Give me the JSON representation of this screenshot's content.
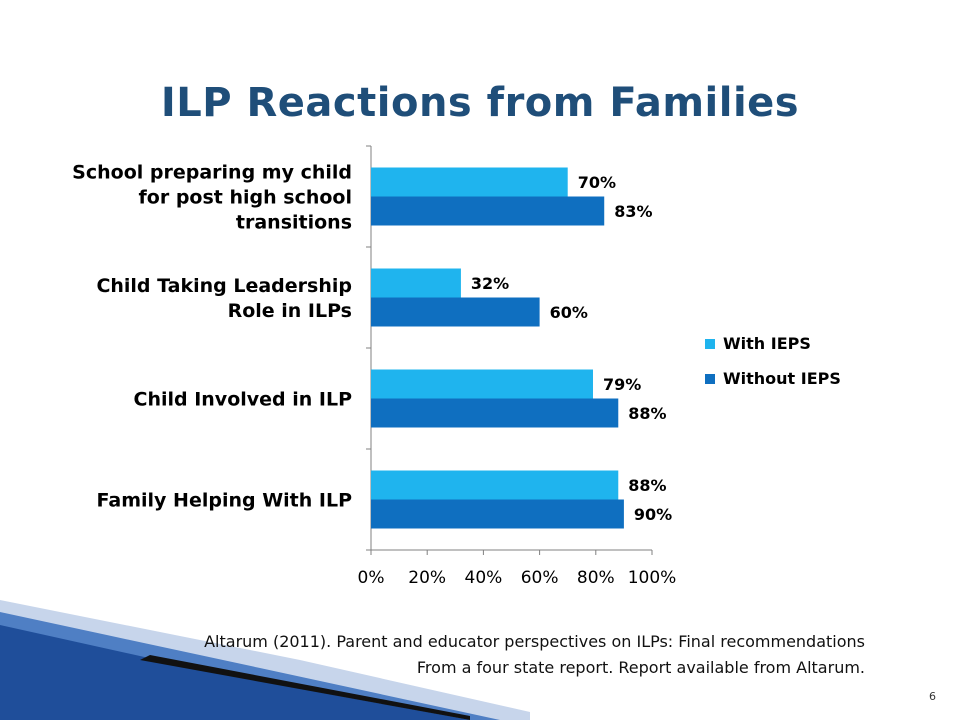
{
  "slide": {
    "title": "ILP Reactions from Families",
    "citation_line1": "Altarum (2011). Parent and educator perspectives on ILPs: Final recommendations",
    "citation_line2": "From a four state report. Report available from Altarum.",
    "page_number": "6"
  },
  "chart_data": {
    "type": "bar",
    "orientation": "horizontal",
    "title": "",
    "xlabel": "",
    "ylabel": "",
    "xlim": [
      0,
      100
    ],
    "x_ticks": [
      "0%",
      "20%",
      "40%",
      "60%",
      "80%",
      "100%"
    ],
    "categories": [
      [
        "School preparing my child",
        "for post high school",
        "transitions"
      ],
      [
        "Child Taking Leadership",
        "Role in ILPs"
      ],
      [
        "Child Involved in ILP"
      ],
      [
        "Family Helping With ILP"
      ]
    ],
    "series": [
      {
        "name": "With IEPS",
        "color": "#1fb4ee",
        "values": [
          70,
          32,
          79,
          88
        ],
        "labels": [
          "70%",
          "32%",
          "79%",
          "88%"
        ]
      },
      {
        "name": "Without IEPS",
        "color": "#0f6fc0",
        "values": [
          83,
          60,
          88,
          90
        ],
        "labels": [
          "83%",
          "60%",
          "88%",
          "90%"
        ]
      }
    ],
    "grid": false,
    "legend_position": "right"
  }
}
